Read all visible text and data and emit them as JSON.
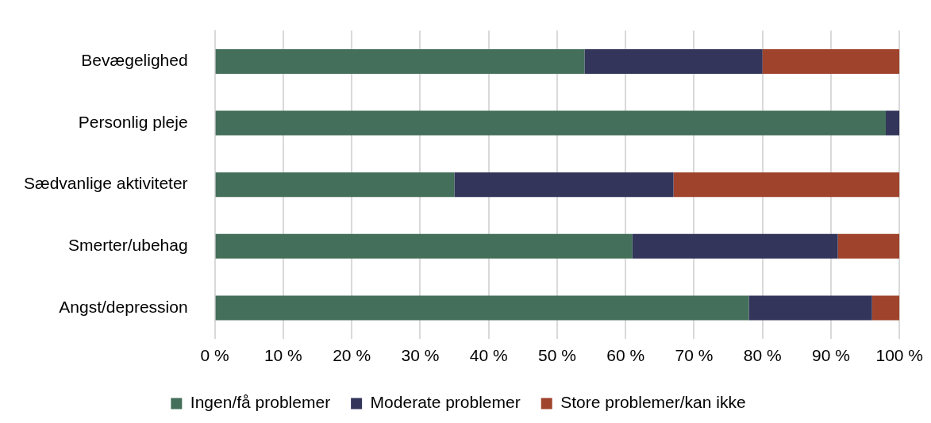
{
  "chart_data": {
    "type": "bar",
    "orientation": "horizontal",
    "stacked": true,
    "categories": [
      "Bevægelighed",
      "Personlig pleje",
      "Sædvanlige aktiviteter",
      "Smerter/ubehag",
      "Angst/depression"
    ],
    "series": [
      {
        "name": "Ingen/få problemer",
        "color": "#446f5b",
        "values": [
          54,
          98,
          35,
          61,
          78
        ]
      },
      {
        "name": "Moderate problemer",
        "color": "#33355a",
        "values": [
          26,
          2,
          32,
          30,
          18
        ]
      },
      {
        "name": "Store problemer/kan ikke",
        "color": "#a0432c",
        "values": [
          20,
          0,
          33,
          9,
          4
        ]
      }
    ],
    "xlim": [
      0,
      100
    ],
    "xticks": [
      {
        "value": 0,
        "label": "0 %"
      },
      {
        "value": 10,
        "label": "10 %"
      },
      {
        "value": 20,
        "label": "20 %"
      },
      {
        "value": 30,
        "label": "30 %"
      },
      {
        "value": 40,
        "label": "40 %"
      },
      {
        "value": 50,
        "label": "50 %"
      },
      {
        "value": 60,
        "label": "60 %"
      },
      {
        "value": 70,
        "label": "70 %"
      },
      {
        "value": 80,
        "label": "80 %"
      },
      {
        "value": 90,
        "label": "90 %"
      },
      {
        "value": 100,
        "label": "100 %"
      }
    ],
    "grid": "x",
    "legend": "bottom"
  }
}
